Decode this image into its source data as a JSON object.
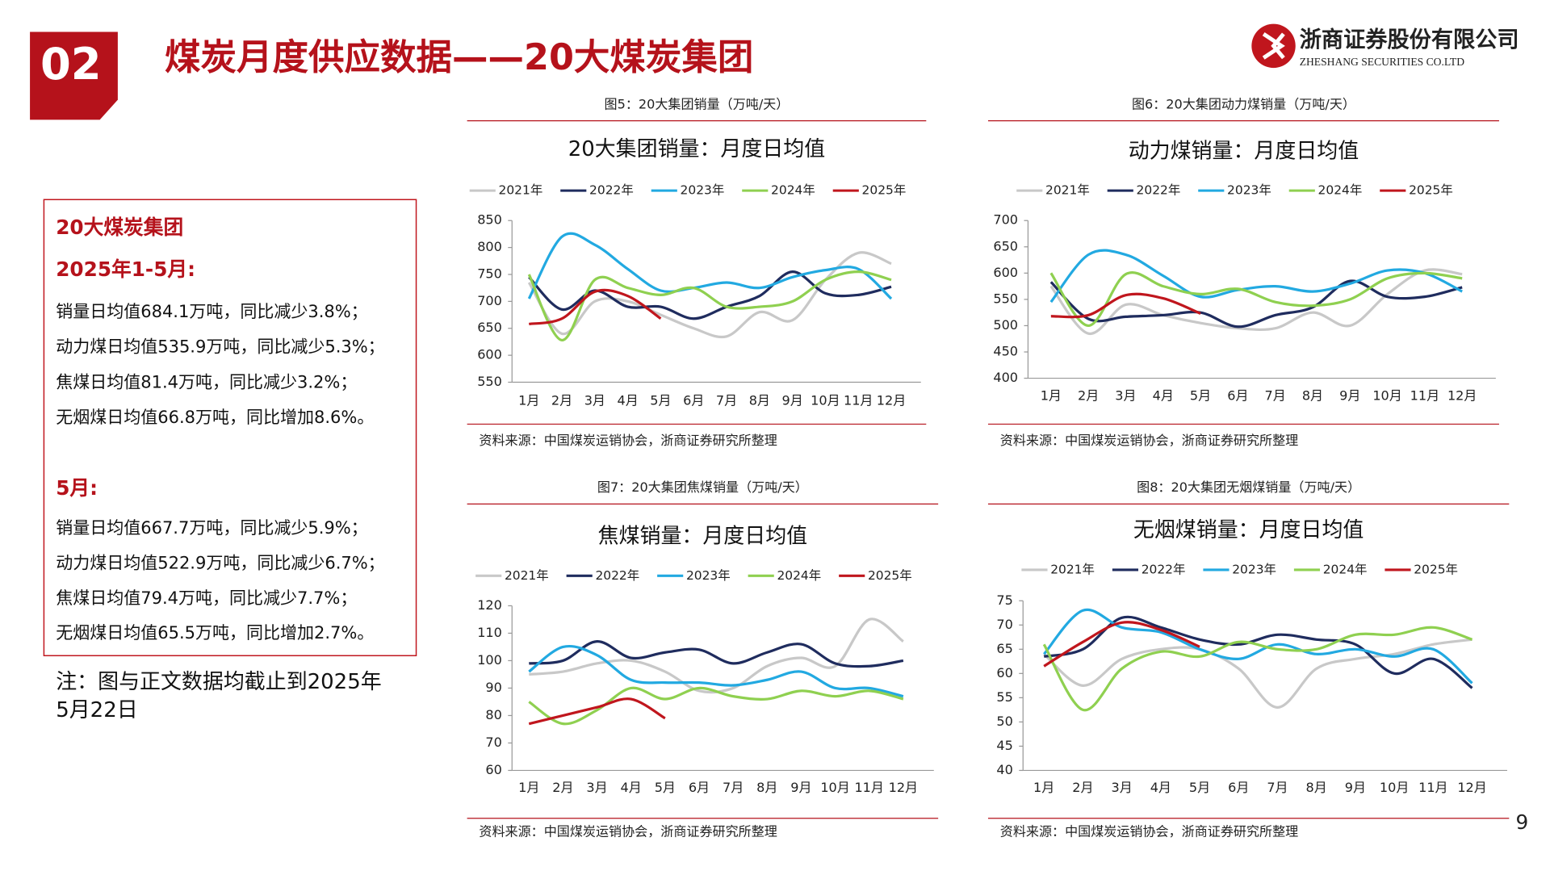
{
  "header": {
    "number": "02",
    "title": "煤炭月度供应数据——20大煤炭集团",
    "company": "浙商证券股份有限公司",
    "company_en": "ZHESHANG SECURITIES CO.LTD"
  },
  "summary": {
    "heading": "20大煤炭集团",
    "ytd_label": "2025年1-5月:",
    "ytd_lines": [
      "销量日均值684.1万吨，同比减少3.8%；",
      "动力煤日均值535.9万吨，同比减少5.3%；",
      "焦煤日均值81.4万吨，同比减少3.2%；",
      "无烟煤日均值66.8万吨，同比增加8.6%。"
    ],
    "month_label": "5月:",
    "month_lines": [
      "销量日均值667.7万吨，同比减少5.9%；",
      "动力煤日均值522.9万吨，同比减少6.7%；",
      "焦煤日均值79.4万吨，同比减少7.7%；",
      "无烟煤日均值65.5万吨，同比增加2.7%。"
    ]
  },
  "note": [
    "注：图与正文数据均截止到2025年",
    "5月22日"
  ],
  "page_number": "9",
  "chart_data": [
    {
      "type": "line",
      "caption": "图5：20大集团销量（万吨/天）",
      "title": "20大集团销量：月度日均值",
      "source": "资料来源：中国煤炭运销协会，浙商证券研究所整理",
      "categories": [
        "1月",
        "2月",
        "3月",
        "4月",
        "5月",
        "6月",
        "7月",
        "8月",
        "9月",
        "10月",
        "11月",
        "12月"
      ],
      "ylim": [
        550,
        850
      ],
      "yticks": [
        550,
        600,
        650,
        700,
        750,
        800,
        850
      ],
      "series": [
        {
          "name": "2021年",
          "color": "#c8c8c8",
          "values": [
            735,
            640,
            700,
            700,
            675,
            650,
            635,
            680,
            665,
            740,
            790,
            770
          ]
        },
        {
          "name": "2022年",
          "color": "#1f2c5e",
          "values": [
            745,
            685,
            720,
            690,
            690,
            668,
            690,
            710,
            755,
            715,
            712,
            727
          ]
        },
        {
          "name": "2023年",
          "color": "#22a9e1",
          "values": [
            705,
            820,
            805,
            760,
            720,
            725,
            735,
            725,
            745,
            758,
            760,
            705
          ]
        },
        {
          "name": "2024年",
          "color": "#8fd050",
          "values": [
            750,
            628,
            740,
            725,
            712,
            725,
            690,
            690,
            700,
            740,
            755,
            740
          ]
        },
        {
          "name": "2025年",
          "color": "#c0161d",
          "values": [
            658,
            668,
            718,
            710,
            668,
            null,
            null,
            null,
            null,
            null,
            null,
            null
          ]
        }
      ]
    },
    {
      "type": "line",
      "caption": "图6：20大集团动力煤销量（万吨/天）",
      "title": "动力煤销量：月度日均值",
      "source": "资料来源：中国煤炭运销协会，浙商证券研究所整理",
      "categories": [
        "1月",
        "2月",
        "3月",
        "4月",
        "5月",
        "6月",
        "7月",
        "8月",
        "9月",
        "10月",
        "11月",
        "12月"
      ],
      "ylim": [
        400,
        700
      ],
      "yticks": [
        400,
        450,
        500,
        550,
        600,
        650,
        700
      ],
      "series": [
        {
          "name": "2021年",
          "color": "#c8c8c8",
          "values": [
            575,
            485,
            540,
            520,
            505,
            495,
            495,
            525,
            500,
            560,
            605,
            598
          ]
        },
        {
          "name": "2022年",
          "color": "#1f2c5e",
          "values": [
            583,
            513,
            517,
            520,
            525,
            498,
            520,
            535,
            585,
            555,
            555,
            573
          ]
        },
        {
          "name": "2023年",
          "color": "#22a9e1",
          "values": [
            545,
            635,
            635,
            595,
            555,
            568,
            575,
            565,
            580,
            605,
            600,
            565
          ]
        },
        {
          "name": "2024年",
          "color": "#8fd050",
          "values": [
            600,
            500,
            598,
            575,
            560,
            570,
            545,
            538,
            550,
            590,
            600,
            590
          ]
        },
        {
          "name": "2025年",
          "color": "#c0161d",
          "values": [
            518,
            520,
            558,
            552,
            523,
            null,
            null,
            null,
            null,
            null,
            null,
            null
          ]
        }
      ]
    },
    {
      "type": "line",
      "caption": "图7：20大集团焦煤销量（万吨/天）",
      "title": "焦煤销量：月度日均值",
      "source": "资料来源：中国煤炭运销协会，浙商证券研究所整理",
      "categories": [
        "1月",
        "2月",
        "3月",
        "4月",
        "5月",
        "6月",
        "7月",
        "8月",
        "9月",
        "10月",
        "11月",
        "12月"
      ],
      "ylim": [
        60,
        120
      ],
      "yticks": [
        60,
        70,
        80,
        90,
        100,
        110,
        120
      ],
      "series": [
        {
          "name": "2021年",
          "color": "#c8c8c8",
          "values": [
            95,
            96,
            99,
            100,
            96,
            89,
            90,
            98,
            101,
            98,
            115,
            107
          ]
        },
        {
          "name": "2022年",
          "color": "#1f2c5e",
          "values": [
            99,
            100,
            107,
            101,
            103,
            104,
            99,
            103,
            106,
            99,
            98,
            100
          ]
        },
        {
          "name": "2023年",
          "color": "#22a9e1",
          "values": [
            96,
            105,
            102,
            93,
            92,
            92,
            91,
            93,
            96,
            90,
            90,
            87
          ]
        },
        {
          "name": "2024年",
          "color": "#8fd050",
          "values": [
            85,
            77,
            82,
            90,
            86,
            90,
            87,
            86,
            89,
            87,
            89,
            86
          ]
        },
        {
          "name": "2025年",
          "color": "#c0161d",
          "values": [
            77,
            80,
            83,
            86,
            79,
            null,
            null,
            null,
            null,
            null,
            null,
            null
          ]
        }
      ]
    },
    {
      "type": "line",
      "caption": "图8：20大集团无烟煤销量（万吨/天）",
      "title": "无烟煤销量：月度日均值",
      "source": "资料来源：中国煤炭运销协会，浙商证券研究所整理",
      "categories": [
        "1月",
        "2月",
        "3月",
        "4月",
        "5月",
        "6月",
        "7月",
        "8月",
        "9月",
        "10月",
        "11月",
        "12月"
      ],
      "ylim": [
        40,
        75
      ],
      "yticks": [
        40,
        45,
        50,
        55,
        60,
        65,
        70,
        75
      ],
      "series": [
        {
          "name": "2021年",
          "color": "#c8c8c8",
          "values": [
            64,
            57.5,
            63,
            65,
            65,
            61,
            53,
            61,
            63,
            64,
            66,
            67
          ]
        },
        {
          "name": "2022年",
          "color": "#1f2c5e",
          "values": [
            63.5,
            65,
            71.5,
            69.5,
            67,
            66,
            68,
            67,
            66,
            60,
            63,
            57
          ]
        },
        {
          "name": "2023年",
          "color": "#22a9e1",
          "values": [
            64,
            73,
            69.5,
            68.5,
            65,
            63,
            66,
            64,
            65,
            63.5,
            65,
            58
          ]
        },
        {
          "name": "2024年",
          "color": "#8fd050",
          "values": [
            66,
            52.5,
            61,
            64.5,
            63.5,
            66.5,
            65,
            65,
            68,
            68,
            69.5,
            67
          ]
        },
        {
          "name": "2025年",
          "color": "#c0161d",
          "values": [
            61.5,
            66.5,
            70.5,
            69,
            65.5,
            null,
            null,
            null,
            null,
            null,
            null,
            null
          ]
        }
      ]
    }
  ]
}
